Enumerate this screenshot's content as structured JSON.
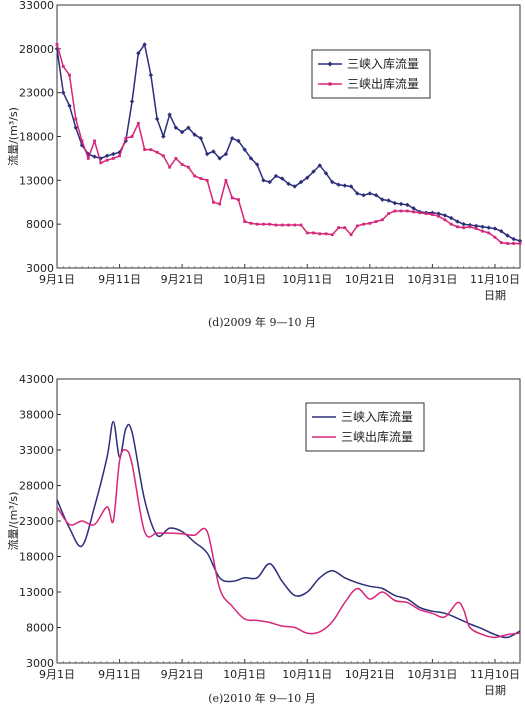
{
  "chart_data": [
    {
      "type": "line",
      "caption": "(d)2009 年 9—10 月",
      "ylabel": "流量/(m³/s)",
      "xlabel": "日期",
      "ylim": [
        3000,
        33000
      ],
      "yticks": [
        3000,
        8000,
        13000,
        18000,
        23000,
        28000,
        33000
      ],
      "xlim": [
        1,
        75
      ],
      "xticks": [
        {
          "day": 1,
          "label": "9月1日"
        },
        {
          "day": 11,
          "label": "9月11日"
        },
        {
          "day": 21,
          "label": "9月21日"
        },
        {
          "day": 31,
          "label": "10月1日"
        },
        {
          "day": 41,
          "label": "10月11日"
        },
        {
          "day": 51,
          "label": "10月21日"
        },
        {
          "day": 61,
          "label": "10月31日"
        },
        {
          "day": 71,
          "label": "11月10日"
        }
      ],
      "legend_position": "top-right",
      "markers": true,
      "series": [
        {
          "name": "三峡入库流量",
          "color": "#2b2f7a",
          "points": [
            [
              1,
              28000
            ],
            [
              2,
              23000
            ],
            [
              3,
              21500
            ],
            [
              4,
              19000
            ],
            [
              5,
              17000
            ],
            [
              6,
              16000
            ],
            [
              7,
              15700
            ],
            [
              8,
              15500
            ],
            [
              9,
              15800
            ],
            [
              10,
              16000
            ],
            [
              11,
              16200
            ],
            [
              12,
              17500
            ],
            [
              13,
              22000
            ],
            [
              14,
              27500
            ],
            [
              15,
              28500
            ],
            [
              16,
              25000
            ],
            [
              17,
              20000
            ],
            [
              18,
              18000
            ],
            [
              19,
              20500
            ],
            [
              20,
              19000
            ],
            [
              21,
              18500
            ],
            [
              22,
              19000
            ],
            [
              23,
              18200
            ],
            [
              24,
              17800
            ],
            [
              25,
              16000
            ],
            [
              26,
              16300
            ],
            [
              27,
              15500
            ],
            [
              28,
              16000
            ],
            [
              29,
              17800
            ],
            [
              30,
              17500
            ],
            [
              31,
              16500
            ],
            [
              32,
              15500
            ],
            [
              33,
              14800
            ],
            [
              34,
              13000
            ],
            [
              35,
              12800
            ],
            [
              36,
              13500
            ],
            [
              37,
              13200
            ],
            [
              38,
              12600
            ],
            [
              39,
              12300
            ],
            [
              40,
              12800
            ],
            [
              41,
              13300
            ],
            [
              42,
              14000
            ],
            [
              43,
              14700
            ],
            [
              44,
              13800
            ],
            [
              45,
              12800
            ],
            [
              46,
              12500
            ],
            [
              47,
              12400
            ],
            [
              48,
              12300
            ],
            [
              49,
              11500
            ],
            [
              50,
              11300
            ],
            [
              51,
              11500
            ],
            [
              52,
              11300
            ],
            [
              53,
              10800
            ],
            [
              54,
              10700
            ],
            [
              55,
              10400
            ],
            [
              56,
              10300
            ],
            [
              57,
              10200
            ],
            [
              58,
              9800
            ],
            [
              59,
              9400
            ],
            [
              60,
              9300
            ],
            [
              61,
              9300
            ],
            [
              62,
              9200
            ],
            [
              63,
              9000
            ],
            [
              64,
              8700
            ],
            [
              65,
              8300
            ],
            [
              66,
              8000
            ],
            [
              67,
              7900
            ],
            [
              68,
              7800
            ],
            [
              69,
              7700
            ],
            [
              70,
              7600
            ],
            [
              71,
              7500
            ],
            [
              72,
              7200
            ],
            [
              73,
              6700
            ],
            [
              74,
              6300
            ],
            [
              75,
              6100
            ]
          ]
        },
        {
          "name": "三峡出库流量",
          "color": "#d6267a",
          "points": [
            [
              1,
              28500
            ],
            [
              2,
              26000
            ],
            [
              3,
              25000
            ],
            [
              4,
              20000
            ],
            [
              5,
              17500
            ],
            [
              6,
              15500
            ],
            [
              7,
              17500
            ],
            [
              8,
              15000
            ],
            [
              9,
              15300
            ],
            [
              10,
              15500
            ],
            [
              11,
              15800
            ],
            [
              12,
              17800
            ],
            [
              13,
              18000
            ],
            [
              14,
              19500
            ],
            [
              15,
              16500
            ],
            [
              16,
              16500
            ],
            [
              17,
              16200
            ],
            [
              18,
              15800
            ],
            [
              19,
              14500
            ],
            [
              20,
              15500
            ],
            [
              21,
              14800
            ],
            [
              22,
              14500
            ],
            [
              23,
              13500
            ],
            [
              24,
              13200
            ],
            [
              25,
              13000
            ],
            [
              26,
              10500
            ],
            [
              27,
              10300
            ],
            [
              28,
              13000
            ],
            [
              29,
              11000
            ],
            [
              30,
              10800
            ],
            [
              31,
              8300
            ],
            [
              32,
              8100
            ],
            [
              33,
              8000
            ],
            [
              34,
              8000
            ],
            [
              35,
              8000
            ],
            [
              36,
              7900
            ],
            [
              37,
              7900
            ],
            [
              38,
              7900
            ],
            [
              39,
              7900
            ],
            [
              40,
              7900
            ],
            [
              41,
              7000
            ],
            [
              42,
              7000
            ],
            [
              43,
              6900
            ],
            [
              44,
              6900
            ],
            [
              45,
              6800
            ],
            [
              46,
              7600
            ],
            [
              47,
              7600
            ],
            [
              48,
              6800
            ],
            [
              49,
              7800
            ],
            [
              50,
              8000
            ],
            [
              51,
              8100
            ],
            [
              52,
              8300
            ],
            [
              53,
              8500
            ],
            [
              54,
              9200
            ],
            [
              55,
              9500
            ],
            [
              56,
              9500
            ],
            [
              57,
              9500
            ],
            [
              58,
              9400
            ],
            [
              59,
              9300
            ],
            [
              60,
              9200
            ],
            [
              61,
              9100
            ],
            [
              62,
              8900
            ],
            [
              63,
              8500
            ],
            [
              64,
              8000
            ],
            [
              65,
              7700
            ],
            [
              66,
              7600
            ],
            [
              67,
              7700
            ],
            [
              68,
              7500
            ],
            [
              69,
              7200
            ],
            [
              70,
              7000
            ],
            [
              71,
              6500
            ],
            [
              72,
              5900
            ],
            [
              73,
              5800
            ],
            [
              74,
              5800
            ],
            [
              75,
              5800
            ]
          ]
        }
      ]
    },
    {
      "type": "line",
      "caption": "(e)2010 年 9—10 月",
      "ylabel": "流量/(m³/s)",
      "xlabel": "日期",
      "ylim": [
        3000,
        43000
      ],
      "yticks": [
        3000,
        8000,
        13000,
        18000,
        23000,
        28000,
        33000,
        38000,
        43000
      ],
      "xlim": [
        1,
        75
      ],
      "xticks": [
        {
          "day": 1,
          "label": "9月1日"
        },
        {
          "day": 11,
          "label": "9月11日"
        },
        {
          "day": 21,
          "label": "9月21日"
        },
        {
          "day": 31,
          "label": "10月1日"
        },
        {
          "day": 41,
          "label": "10月11日"
        },
        {
          "day": 51,
          "label": "10月21日"
        },
        {
          "day": 61,
          "label": "10月31日"
        },
        {
          "day": 71,
          "label": "11月10日"
        }
      ],
      "legend_position": "top-right",
      "markers": false,
      "series": [
        {
          "name": "三峡入库流量",
          "color": "#2b2f7a",
          "points": [
            [
              1,
              26000
            ],
            [
              3,
              22000
            ],
            [
              5,
              19500
            ],
            [
              7,
              25000
            ],
            [
              9,
              32000
            ],
            [
              10,
              37000
            ],
            [
              11,
              32000
            ],
            [
              12,
              36000
            ],
            [
              13,
              35500
            ],
            [
              15,
              26000
            ],
            [
              17,
              21000
            ],
            [
              19,
              22000
            ],
            [
              21,
              21500
            ],
            [
              23,
              20000
            ],
            [
              25,
              18500
            ],
            [
              27,
              15000
            ],
            [
              29,
              14500
            ],
            [
              31,
              15000
            ],
            [
              33,
              15000
            ],
            [
              35,
              17000
            ],
            [
              37,
              14500
            ],
            [
              39,
              12500
            ],
            [
              41,
              13000
            ],
            [
              43,
              15000
            ],
            [
              45,
              16000
            ],
            [
              47,
              15000
            ],
            [
              49,
              14300
            ],
            [
              51,
              13800
            ],
            [
              53,
              13500
            ],
            [
              55,
              12500
            ],
            [
              57,
              12000
            ],
            [
              59,
              10800
            ],
            [
              61,
              10300
            ],
            [
              63,
              10000
            ],
            [
              65,
              9300
            ],
            [
              67,
              8500
            ],
            [
              69,
              7800
            ],
            [
              71,
              7000
            ],
            [
              73,
              6600
            ],
            [
              75,
              7500
            ]
          ]
        },
        {
          "name": "三峡出库流量",
          "color": "#d6267a",
          "points": [
            [
              1,
              25000
            ],
            [
              3,
              22500
            ],
            [
              5,
              23000
            ],
            [
              7,
              22500
            ],
            [
              9,
              25000
            ],
            [
              10,
              23000
            ],
            [
              11,
              31500
            ],
            [
              12,
              33000
            ],
            [
              13,
              31000
            ],
            [
              15,
              21500
            ],
            [
              17,
              21300
            ],
            [
              19,
              21300
            ],
            [
              21,
              21200
            ],
            [
              23,
              21000
            ],
            [
              25,
              21500
            ],
            [
              27,
              13500
            ],
            [
              29,
              11000
            ],
            [
              31,
              9200
            ],
            [
              33,
              9000
            ],
            [
              35,
              8700
            ],
            [
              37,
              8200
            ],
            [
              39,
              8000
            ],
            [
              41,
              7200
            ],
            [
              43,
              7400
            ],
            [
              45,
              8800
            ],
            [
              47,
              11500
            ],
            [
              49,
              13500
            ],
            [
              51,
              12000
            ],
            [
              53,
              13000
            ],
            [
              55,
              11800
            ],
            [
              57,
              11500
            ],
            [
              59,
              10500
            ],
            [
              61,
              10000
            ],
            [
              63,
              9500
            ],
            [
              65,
              11500
            ],
            [
              66,
              10500
            ],
            [
              67,
              8000
            ],
            [
              69,
              7000
            ],
            [
              71,
              6600
            ],
            [
              73,
              7000
            ],
            [
              75,
              7200
            ]
          ]
        }
      ]
    }
  ]
}
